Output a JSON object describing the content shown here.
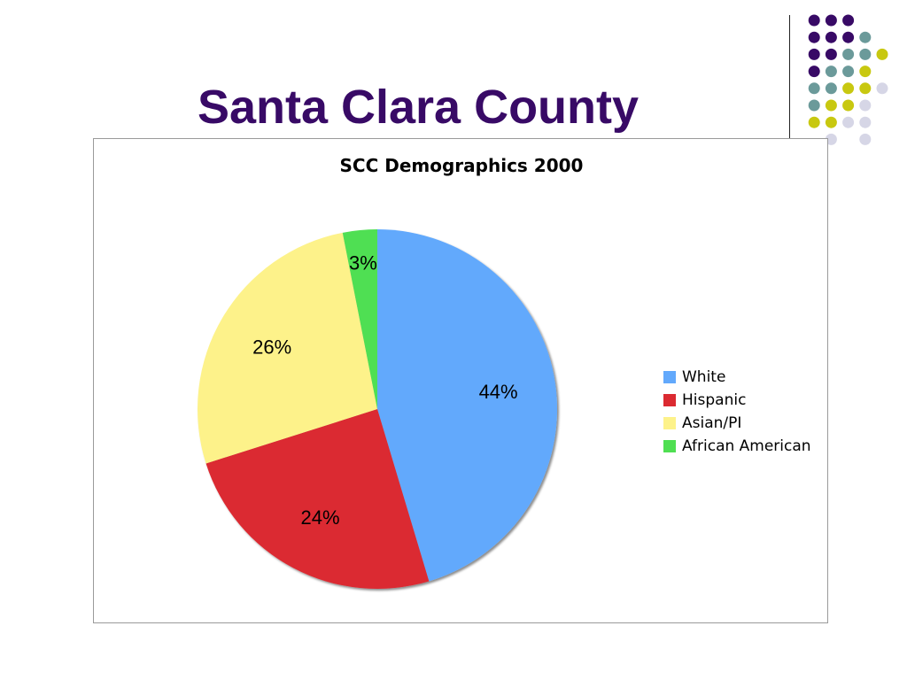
{
  "slide": {
    "title": "Santa Clara County"
  },
  "decoration": {
    "dot_colors": {
      "purple": "#380a66",
      "teal": "#6b9a9a",
      "olive": "#c8c810",
      "lavender": "#d6d6e6"
    },
    "dot_rows": [
      [
        "",
        "",
        "purple",
        "purple",
        "purple",
        ""
      ],
      [
        "",
        "",
        "purple",
        "purple",
        "purple",
        "teal"
      ],
      [
        "",
        "",
        "purple",
        "purple",
        "teal",
        "teal",
        "olive"
      ],
      [
        "",
        "",
        "purple",
        "teal",
        "teal",
        "olive"
      ],
      [
        "",
        "",
        "teal",
        "teal",
        "olive",
        "olive",
        "lavender"
      ],
      [
        "",
        "",
        "teal",
        "olive",
        "olive",
        "lavender"
      ],
      [
        "",
        "",
        "olive",
        "olive",
        "lavender",
        "lavender"
      ],
      [
        "",
        "",
        "",
        "lavender",
        "",
        "lavender"
      ]
    ]
  },
  "chart_data": {
    "type": "pie",
    "title": "SCC Demographics 2000",
    "categories": [
      "White",
      "Hispanic",
      "Asian/PI",
      "African American"
    ],
    "values": [
      44,
      24,
      26,
      3
    ],
    "labels": [
      "44%",
      "24%",
      "26%",
      "3%"
    ],
    "colors": [
      "#62a9fc",
      "#db2a31",
      "#fdf28a",
      "#4fdf52"
    ],
    "start_angle": "top (12 o'clock), clockwise",
    "legend_position": "right"
  }
}
